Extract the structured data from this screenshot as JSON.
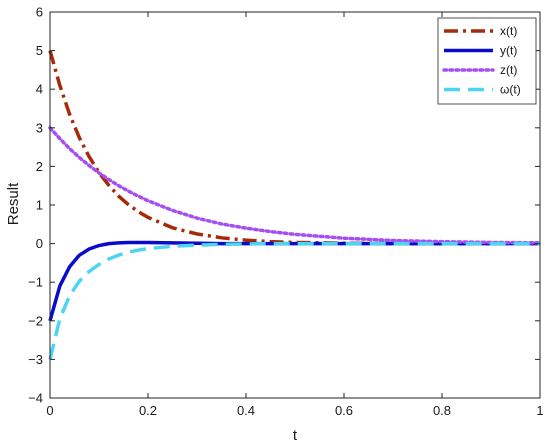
{
  "chart_data": {
    "type": "line",
    "title": "",
    "xlabel": "t",
    "ylabel": "Result",
    "xlim": [
      0,
      1
    ],
    "ylim": [
      -4,
      6
    ],
    "xticks": [
      0,
      0.2,
      0.4,
      0.6,
      0.8,
      1
    ],
    "xtick_labels": [
      "0",
      "0.2",
      "0.4",
      "0.6",
      "0.8",
      "1"
    ],
    "yticks": [
      -4,
      -3,
      -2,
      -1,
      0,
      1,
      2,
      3,
      4,
      5,
      6
    ],
    "ytick_labels": [
      "−4",
      "−3",
      "−2",
      "−1",
      "0",
      "1",
      "2",
      "3",
      "4",
      "5",
      "6"
    ],
    "grid": false,
    "legend_position": "top-right",
    "x": [
      0,
      0.02,
      0.04,
      0.06,
      0.08,
      0.1,
      0.12,
      0.14,
      0.16,
      0.18,
      0.2,
      0.25,
      0.3,
      0.35,
      0.4,
      0.45,
      0.5,
      0.6,
      0.7,
      0.8,
      0.9,
      1.0
    ],
    "series": [
      {
        "name": "x(t)",
        "color": "#a52a0a",
        "dash": "dashdot",
        "values": [
          5.0,
          4.1,
          3.35,
          2.74,
          2.25,
          1.84,
          1.51,
          1.23,
          1.01,
          0.83,
          0.68,
          0.41,
          0.25,
          0.15,
          0.09,
          0.05,
          0.03,
          0.01,
          0.0,
          0.0,
          0.0,
          0.0
        ]
      },
      {
        "name": "y(t)",
        "color": "#0a0aca",
        "dash": "solid",
        "values": [
          -2.0,
          -1.1,
          -0.6,
          -0.3,
          -0.14,
          -0.05,
          0.0,
          0.02,
          0.03,
          0.03,
          0.03,
          0.02,
          0.01,
          0.0,
          0.0,
          0.0,
          0.0,
          0.0,
          0.0,
          0.0,
          0.0,
          0.0
        ]
      },
      {
        "name": "z(t)",
        "color": "#a64ff0",
        "dash": "dotted",
        "values": [
          3.0,
          2.72,
          2.46,
          2.23,
          2.02,
          1.83,
          1.66,
          1.5,
          1.36,
          1.23,
          1.11,
          0.86,
          0.66,
          0.51,
          0.4,
          0.31,
          0.24,
          0.14,
          0.08,
          0.05,
          0.03,
          0.02
        ]
      },
      {
        "name": "ω(t)",
        "color": "#4cd4f0",
        "dash": "dashed",
        "values": [
          -3.0,
          -1.95,
          -1.35,
          -0.97,
          -0.72,
          -0.54,
          -0.4,
          -0.3,
          -0.22,
          -0.17,
          -0.13,
          -0.07,
          -0.04,
          -0.02,
          -0.01,
          0.0,
          0.0,
          0.0,
          0.0,
          0.0,
          0.0,
          0.0
        ]
      }
    ]
  }
}
